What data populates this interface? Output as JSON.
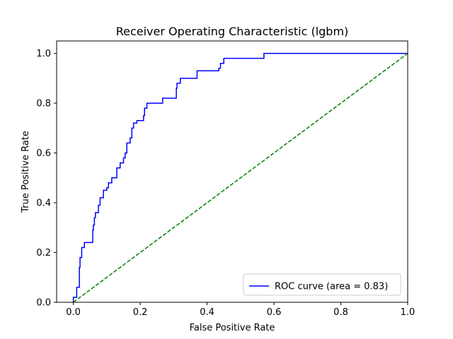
{
  "chart_data": {
    "type": "line",
    "title": "Receiver Operating Characteristic (lgbm)",
    "xlabel": "False Positive Rate",
    "ylabel": "True Positive Rate",
    "xlim": [
      -0.05,
      1.0
    ],
    "ylim": [
      0.0,
      1.05
    ],
    "xticks": [
      0.0,
      0.2,
      0.4,
      0.6,
      0.8,
      1.0
    ],
    "xtick_labels": [
      "0.0",
      "0.2",
      "0.4",
      "0.6",
      "0.8",
      "1.0"
    ],
    "yticks": [
      0.0,
      0.2,
      0.4,
      0.6,
      0.8,
      1.0
    ],
    "ytick_labels": [
      "0.0",
      "0.2",
      "0.4",
      "0.6",
      "0.8",
      "1.0"
    ],
    "grid": false,
    "legend_position": "lower-right",
    "series": [
      {
        "name": "ROC curve (area = 0.83)",
        "color": "#0000ff",
        "style": "solid",
        "x": [
          0.0,
          0.0,
          0.01,
          0.01,
          0.018,
          0.018,
          0.02,
          0.02,
          0.025,
          0.025,
          0.033,
          0.033,
          0.058,
          0.058,
          0.06,
          0.06,
          0.063,
          0.063,
          0.066,
          0.066,
          0.075,
          0.075,
          0.08,
          0.08,
          0.09,
          0.09,
          0.1,
          0.1,
          0.105,
          0.105,
          0.115,
          0.115,
          0.13,
          0.13,
          0.14,
          0.14,
          0.15,
          0.15,
          0.155,
          0.155,
          0.16,
          0.16,
          0.17,
          0.17,
          0.175,
          0.175,
          0.18,
          0.18,
          0.19,
          0.19,
          0.21,
          0.21,
          0.213,
          0.213,
          0.22,
          0.22,
          0.267,
          0.267,
          0.308,
          0.308,
          0.31,
          0.31,
          0.32,
          0.32,
          0.37,
          0.37,
          0.435,
          0.435,
          0.44,
          0.44,
          0.45,
          0.45,
          0.57,
          0.57,
          0.7,
          0.7,
          1.0
        ],
        "y": [
          0.0,
          0.02,
          0.02,
          0.06,
          0.06,
          0.14,
          0.14,
          0.18,
          0.18,
          0.22,
          0.22,
          0.24,
          0.24,
          0.29,
          0.29,
          0.31,
          0.31,
          0.34,
          0.34,
          0.36,
          0.36,
          0.39,
          0.39,
          0.42,
          0.42,
          0.45,
          0.45,
          0.46,
          0.46,
          0.48,
          0.48,
          0.5,
          0.5,
          0.54,
          0.54,
          0.56,
          0.56,
          0.58,
          0.58,
          0.6,
          0.6,
          0.64,
          0.64,
          0.66,
          0.66,
          0.7,
          0.7,
          0.72,
          0.72,
          0.73,
          0.73,
          0.75,
          0.75,
          0.78,
          0.78,
          0.8,
          0.8,
          0.82,
          0.82,
          0.86,
          0.86,
          0.88,
          0.88,
          0.9,
          0.9,
          0.93,
          0.93,
          0.94,
          0.94,
          0.96,
          0.96,
          0.98,
          0.98,
          1.0,
          1.0,
          1.0,
          1.0
        ]
      },
      {
        "color": "#008000",
        "style": "dashed",
        "x": [
          0.0,
          1.0
        ],
        "y": [
          0.0,
          1.0
        ]
      }
    ]
  }
}
